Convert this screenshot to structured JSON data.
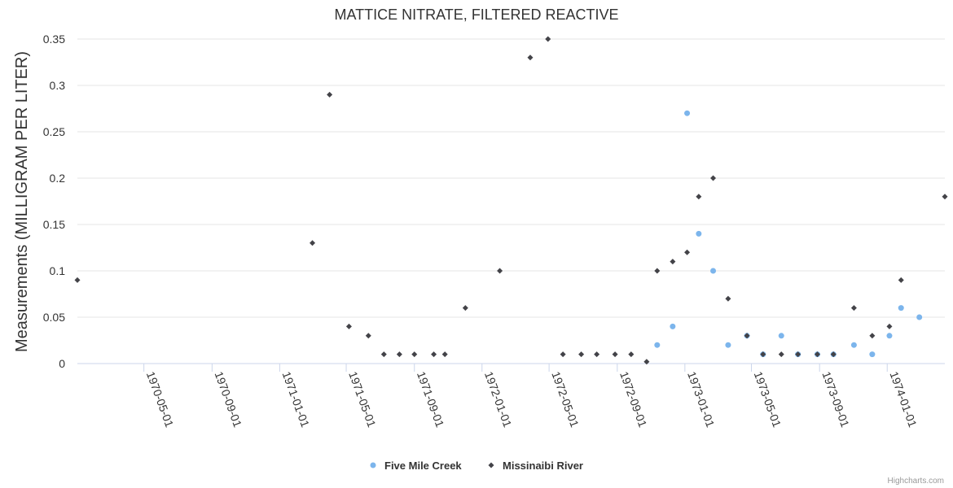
{
  "chart_data": {
    "type": "scatter",
    "title": "MATTICE NITRATE, FILTERED REACTIVE",
    "ylabel": "Measurements (MILLIGRAM PER LITER)",
    "xlabel": "",
    "ylim": [
      0,
      0.35
    ],
    "xlim": [
      "1970-01-01",
      "1974-04-15"
    ],
    "y_ticks": [
      0,
      0.05,
      0.1,
      0.15,
      0.2,
      0.25,
      0.3,
      0.35
    ],
    "y_tick_labels": [
      "0",
      "0.05",
      "0.1",
      "0.15",
      "0.2",
      "0.25",
      "0.3",
      "0.35"
    ],
    "x_ticks": [
      "1970-05-01",
      "1970-09-01",
      "1971-01-01",
      "1971-05-01",
      "1971-09-01",
      "1972-01-01",
      "1972-05-01",
      "1972-09-01",
      "1973-01-01",
      "1973-05-01",
      "1973-09-01",
      "1974-01-01"
    ],
    "grid": true,
    "legend_position": "bottom-center",
    "series": [
      {
        "name": "Five Mile Creek",
        "color": "#7cb5ec",
        "marker": "circle",
        "points": [
          [
            "1972-11-12",
            0.02
          ],
          [
            "1972-12-10",
            0.04
          ],
          [
            "1973-01-05",
            0.27
          ],
          [
            "1973-01-26",
            0.14
          ],
          [
            "1973-02-21",
            0.1
          ],
          [
            "1973-03-20",
            0.02
          ],
          [
            "1973-04-23",
            0.03
          ],
          [
            "1973-05-22",
            0.01
          ],
          [
            "1973-06-24",
            0.03
          ],
          [
            "1973-07-24",
            0.01
          ],
          [
            "1973-08-28",
            0.01
          ],
          [
            "1973-09-26",
            0.01
          ],
          [
            "1973-11-02",
            0.02
          ],
          [
            "1973-12-05",
            0.01
          ],
          [
            "1974-01-05",
            0.03
          ],
          [
            "1974-01-26",
            0.06
          ],
          [
            "1974-02-28",
            0.05
          ]
        ]
      },
      {
        "name": "Missinaibi River",
        "color": "#434348",
        "marker": "diamond",
        "points": [
          [
            "1970-01-01",
            0.09
          ],
          [
            "1971-03-01",
            0.13
          ],
          [
            "1971-04-01",
            0.29
          ],
          [
            "1971-05-06",
            0.04
          ],
          [
            "1971-06-10",
            0.03
          ],
          [
            "1971-07-08",
            0.01
          ],
          [
            "1971-08-05",
            0.01
          ],
          [
            "1971-09-01",
            0.01
          ],
          [
            "1971-10-06",
            0.01
          ],
          [
            "1971-10-26",
            0.01
          ],
          [
            "1971-12-02",
            0.06
          ],
          [
            "1972-02-02",
            0.1
          ],
          [
            "1972-03-28",
            0.33
          ],
          [
            "1972-04-29",
            0.35
          ],
          [
            "1972-05-26",
            0.01
          ],
          [
            "1972-06-28",
            0.01
          ],
          [
            "1972-07-26",
            0.01
          ],
          [
            "1972-08-28",
            0.01
          ],
          [
            "1972-09-26",
            0.01
          ],
          [
            "1972-10-24",
            0.002
          ],
          [
            "1972-11-12",
            0.1
          ],
          [
            "1972-12-10",
            0.11
          ],
          [
            "1973-01-05",
            0.12
          ],
          [
            "1973-01-26",
            0.18
          ],
          [
            "1973-02-21",
            0.2
          ],
          [
            "1973-03-20",
            0.07
          ],
          [
            "1973-04-23",
            0.03
          ],
          [
            "1973-05-22",
            0.01
          ],
          [
            "1973-06-24",
            0.01
          ],
          [
            "1973-07-24",
            0.01
          ],
          [
            "1973-08-28",
            0.01
          ],
          [
            "1973-09-26",
            0.01
          ],
          [
            "1973-11-02",
            0.06
          ],
          [
            "1973-12-05",
            0.03
          ],
          [
            "1974-01-05",
            0.04
          ],
          [
            "1974-01-26",
            0.09
          ],
          [
            "1974-04-15",
            0.18
          ]
        ]
      }
    ]
  },
  "credits": "Highcharts.com"
}
